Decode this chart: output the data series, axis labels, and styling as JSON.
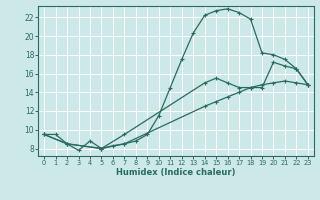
{
  "xlabel": "Humidex (Indice chaleur)",
  "bg_color": "#cce8e8",
  "grid_color": "#b8d8d8",
  "line_color": "#2a6b60",
  "xlim": [
    -0.5,
    23.5
  ],
  "ylim": [
    7.2,
    23.2
  ],
  "yticks": [
    8,
    10,
    12,
    14,
    16,
    18,
    20,
    22
  ],
  "xticks": [
    0,
    1,
    2,
    3,
    4,
    5,
    6,
    7,
    8,
    9,
    10,
    11,
    12,
    13,
    14,
    15,
    16,
    17,
    18,
    19,
    20,
    21,
    22,
    23
  ],
  "curve1_x": [
    0,
    1,
    2,
    3,
    4,
    5,
    6,
    7,
    8,
    9,
    10,
    11,
    12,
    13,
    14,
    15,
    16,
    17,
    18,
    19,
    20,
    21,
    22,
    23
  ],
  "curve1_y": [
    9.5,
    9.5,
    8.5,
    7.8,
    8.8,
    8.0,
    8.3,
    8.5,
    8.8,
    9.5,
    11.5,
    14.5,
    17.5,
    20.3,
    22.2,
    22.7,
    22.9,
    22.5,
    21.8,
    18.2,
    18.0,
    17.5,
    16.5,
    14.8
  ],
  "curve2_x": [
    0,
    2,
    5,
    7,
    14,
    15,
    16,
    17,
    18,
    19,
    20,
    21,
    22,
    23
  ],
  "curve2_y": [
    9.5,
    8.5,
    8.0,
    9.5,
    15.0,
    15.5,
    15.0,
    14.5,
    14.5,
    14.5,
    17.2,
    16.8,
    16.5,
    14.8
  ],
  "curve3_x": [
    0,
    2,
    5,
    7,
    14,
    15,
    16,
    17,
    18,
    19,
    20,
    21,
    22,
    23
  ],
  "curve3_y": [
    9.5,
    8.5,
    8.0,
    8.5,
    12.5,
    13.0,
    13.5,
    14.0,
    14.5,
    14.8,
    15.0,
    15.2,
    15.0,
    14.8
  ]
}
